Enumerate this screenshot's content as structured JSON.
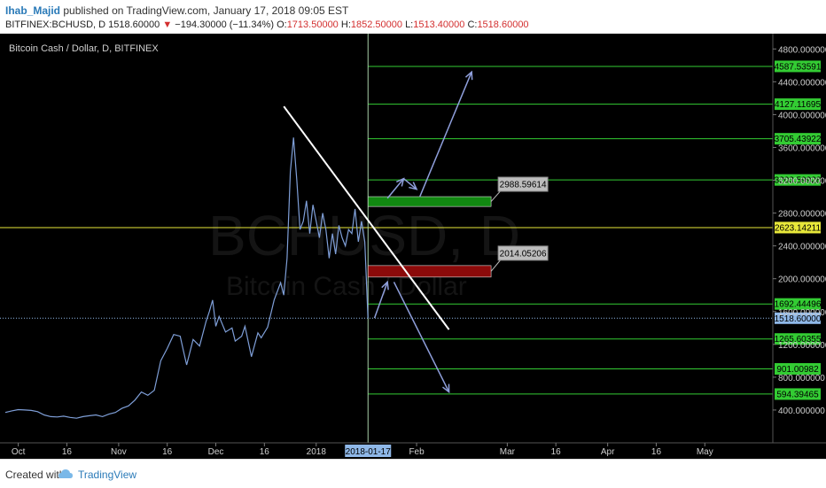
{
  "header": {
    "author": "Ihab_Majid",
    "published_text": "published on TradingView.com, January 17, 2018 09:05 EST",
    "symbol": "BITFINEX:BCHUSD, D",
    "last": "1518.60000",
    "change_arrow": "▼",
    "change": "−194.30000 (−11.34%)",
    "o_label": "O:",
    "o": "1713.50000",
    "h_label": "H:",
    "h": "1852.50000",
    "l_label": "L:",
    "l": "1513.40000",
    "c_label": "C:",
    "c": "1518.60000"
  },
  "footer": {
    "created_with": "Created with",
    "brand": "TradingView",
    "logo_icon": "tradingview-cloud-icon"
  },
  "colors": {
    "background": "#000000",
    "price_line": "#7f9fd8",
    "level_line": "#33cc33",
    "level_label_bg": "#33cc33",
    "resistance_yellow": "#e8e83a",
    "current_price_bg": "#8fb8e8",
    "white_trend": "#ffffff",
    "arrow": "#8f9fdc",
    "green_box": "#118811",
    "red_box": "#8b0a0a"
  },
  "chart_data": {
    "type": "line",
    "title": "Bitcoin Cash / Dollar, D, BITFINEX",
    "watermark_symbol": "BCHUSD, D",
    "watermark_name": "Bitcoin Cash / Dollar",
    "ylim": [
      0,
      4900
    ],
    "y_ticks": [
      "400.000000",
      "800.000000",
      "1200.000000",
      "1600.000000",
      "2000.000000",
      "2400.000000",
      "2800.000000",
      "3200.000000",
      "3600.000000",
      "4000.000000",
      "4400.000000",
      "4800.000000"
    ],
    "y_tick_values": [
      400,
      800,
      1200,
      1600,
      2000,
      2400,
      2800,
      3200,
      3600,
      4000,
      4400,
      4800
    ],
    "x_ticks": [
      {
        "label": "Oct",
        "day": 0
      },
      {
        "label": "16",
        "day": 15
      },
      {
        "label": "Nov",
        "day": 31
      },
      {
        "label": "16",
        "day": 46
      },
      {
        "label": "Dec",
        "day": 61
      },
      {
        "label": "16",
        "day": 76
      },
      {
        "label": "2018",
        "day": 92
      },
      {
        "label": "Feb",
        "day": 123
      },
      {
        "label": "Mar",
        "day": 151
      },
      {
        "label": "16",
        "day": 166
      },
      {
        "label": "Apr",
        "day": 182
      },
      {
        "label": "16",
        "day": 197
      },
      {
        "label": "May",
        "day": 212
      }
    ],
    "x_range_days": [
      -4,
      233
    ],
    "current_date_label": "2018-01-17",
    "current_date_day": 108,
    "current_price": 1518.6,
    "current_price_label": "1518.60000",
    "series": [
      {
        "points": [
          [
            -4,
            370
          ],
          [
            -2,
            390
          ],
          [
            0,
            405
          ],
          [
            2,
            400
          ],
          [
            4,
            395
          ],
          [
            6,
            380
          ],
          [
            8,
            340
          ],
          [
            10,
            320
          ],
          [
            12,
            315
          ],
          [
            14,
            325
          ],
          [
            16,
            310
          ],
          [
            18,
            300
          ],
          [
            20,
            320
          ],
          [
            22,
            330
          ],
          [
            24,
            340
          ],
          [
            26,
            320
          ],
          [
            28,
            350
          ],
          [
            30,
            370
          ],
          [
            32,
            420
          ],
          [
            34,
            450
          ],
          [
            36,
            520
          ],
          [
            38,
            620
          ],
          [
            40,
            580
          ],
          [
            42,
            640
          ],
          [
            44,
            1000
          ],
          [
            46,
            1150
          ],
          [
            48,
            1320
          ],
          [
            50,
            1300
          ],
          [
            51,
            1120
          ],
          [
            52,
            950
          ],
          [
            54,
            1260
          ],
          [
            56,
            1180
          ],
          [
            58,
            1480
          ],
          [
            59,
            1600
          ],
          [
            60,
            1740
          ],
          [
            61,
            1420
          ],
          [
            62,
            1540
          ],
          [
            64,
            1350
          ],
          [
            66,
            1400
          ],
          [
            67,
            1240
          ],
          [
            69,
            1300
          ],
          [
            70,
            1420
          ],
          [
            72,
            1050
          ],
          [
            74,
            1340
          ],
          [
            75,
            1280
          ],
          [
            77,
            1410
          ],
          [
            79,
            1740
          ],
          [
            81,
            1950
          ],
          [
            82,
            1800
          ],
          [
            83,
            2250
          ],
          [
            84,
            3300
          ],
          [
            85,
            3720
          ],
          [
            86,
            3200
          ],
          [
            87,
            2600
          ],
          [
            88,
            2700
          ],
          [
            89,
            2950
          ],
          [
            90,
            2550
          ],
          [
            91,
            2900
          ],
          [
            92,
            2700
          ],
          [
            93,
            2500
          ],
          [
            94,
            2800
          ],
          [
            95,
            2600
          ],
          [
            96,
            2250
          ],
          [
            97,
            2550
          ],
          [
            98,
            2300
          ],
          [
            99,
            2650
          ],
          [
            100,
            2500
          ],
          [
            101,
            2400
          ],
          [
            102,
            2600
          ],
          [
            103,
            2550
          ],
          [
            104,
            2850
          ],
          [
            105,
            2450
          ],
          [
            106,
            2700
          ],
          [
            107,
            2450
          ],
          [
            108,
            1518.6
          ]
        ]
      }
    ],
    "levels": [
      {
        "label": "4587.53591",
        "value": 4587.53591,
        "color": "#33cc33"
      },
      {
        "label": "4127.11695",
        "value": 4127.11695,
        "color": "#33cc33"
      },
      {
        "label": "3705.43922",
        "value": 3705.43922,
        "color": "#33cc33"
      },
      {
        "label": "3203.59928",
        "value": 3203.59928,
        "color": "#33cc33"
      },
      {
        "label": "2623.14211",
        "value": 2623.14211,
        "color": "#e8e83a"
      },
      {
        "label": "1692.44496",
        "value": 1692.44496,
        "color": "#33cc33"
      },
      {
        "label": "1265.60355",
        "value": 1265.60355,
        "color": "#33cc33"
      },
      {
        "label": "901.00982",
        "value": 901.00982,
        "color": "#33cc33"
      },
      {
        "label": "594.39465",
        "value": 594.39465,
        "color": "#33cc33"
      }
    ],
    "boxes": [
      {
        "name": "green-zone",
        "value_top": 3000,
        "value_bottom": 2880,
        "day_start": 108,
        "day_end": 146,
        "color": "#118811",
        "callout": "2988.59614"
      },
      {
        "name": "red-zone",
        "value_top": 2160,
        "value_bottom": 2020,
        "day_start": 108,
        "day_end": 146,
        "color": "#8b0a0a",
        "callout": "2014.05206"
      }
    ],
    "trend_line": {
      "start": [
        82,
        4100
      ],
      "end": [
        133,
        1380
      ]
    },
    "arrows": [
      [
        [
          110,
          1520
        ],
        [
          114,
          1960
        ]
      ],
      [
        [
          116,
          1960
        ],
        [
          133,
          620
        ]
      ],
      [
        [
          114,
          2980
        ],
        [
          119,
          3220
        ]
      ],
      [
        [
          119,
          3220
        ],
        [
          123,
          3090
        ]
      ],
      [
        [
          124,
          3000
        ],
        [
          140,
          4520
        ]
      ]
    ]
  }
}
